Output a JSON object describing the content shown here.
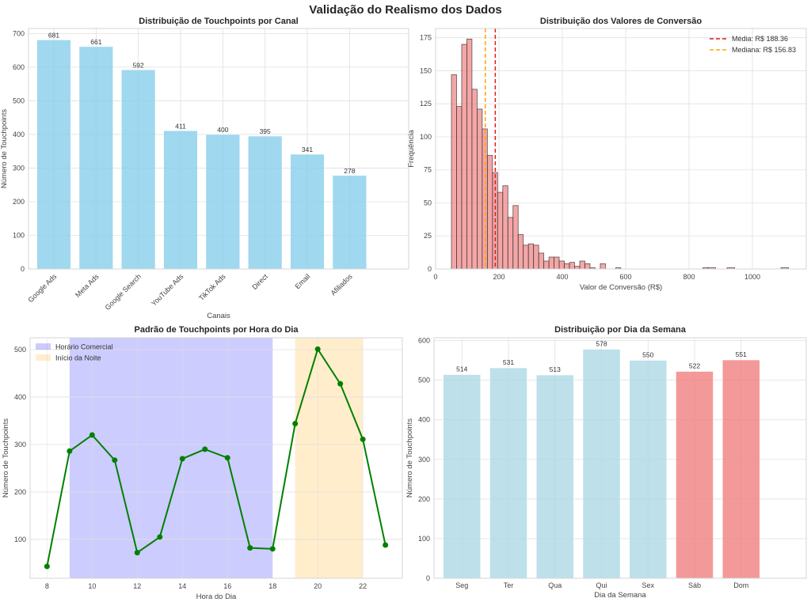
{
  "suptitle": "Validação do Realismo dos Dados",
  "chart_data": [
    {
      "id": "channels",
      "type": "bar",
      "title": "Distribuição de Touchpoints por Canal",
      "xlabel": "Canais",
      "ylabel": "Número de Touchpoints",
      "categories": [
        "Google Ads",
        "Meta Ads",
        "Google Search",
        "YouTube Ads",
        "TikTok Ads",
        "Direct",
        "Email",
        "Afiliados"
      ],
      "values": [
        681,
        661,
        592,
        411,
        400,
        395,
        341,
        278
      ],
      "ylim": [
        0,
        715
      ],
      "yticks": [
        0,
        100,
        200,
        300,
        400,
        500,
        600,
        700
      ],
      "color": "#87ceeb",
      "grid": true
    },
    {
      "id": "conversion",
      "type": "histogram",
      "title": "Distribuição dos Valores de Conversão",
      "xlabel": "Valor de Conversão (R$)",
      "ylabel": "Frequência",
      "bin_start": 50,
      "bin_width": 21.3,
      "counts": [
        147,
        123,
        170,
        174,
        136,
        121,
        106,
        86,
        73,
        58,
        63,
        39,
        48,
        26,
        18,
        19,
        18,
        12,
        6,
        9,
        9,
        6,
        4,
        5,
        2,
        6,
        4,
        1,
        0,
        4,
        0,
        0,
        1,
        0,
        0,
        0,
        0,
        0,
        0,
        0,
        0,
        0,
        0,
        0,
        0,
        0,
        0,
        0,
        0,
        1,
        0
      ],
      "tail_counts": [
        {
          "x": 860,
          "count": 1
        },
        {
          "x": 920,
          "count": 1
        },
        {
          "x": 1090,
          "count": 1
        }
      ],
      "xlim": [
        0,
        1170
      ],
      "ylim": [
        0,
        182
      ],
      "xticks": [
        0,
        200,
        400,
        600,
        800,
        1000
      ],
      "yticks": [
        0,
        25,
        50,
        75,
        100,
        125,
        150,
        175
      ],
      "color": "#f08080",
      "mean": 188.36,
      "median": 156.83,
      "legend": [
        {
          "label": "Média: R$ 188.36",
          "color": "#e41a1c"
        },
        {
          "label": "Mediana: R$ 156.83",
          "color": "#ffa500"
        }
      ],
      "legend_position": "top-right",
      "grid": true
    },
    {
      "id": "hours",
      "type": "line",
      "title": "Padrão de Touchpoints por Hora do Dia",
      "xlabel": "Hora do Dia",
      "ylabel": "Número de Touchpoints",
      "x": [
        8,
        9,
        10,
        11,
        12,
        13,
        14,
        15,
        16,
        17,
        18,
        19,
        20,
        21,
        22,
        23
      ],
      "y": [
        43,
        286,
        320,
        267,
        72,
        105,
        270,
        290,
        272,
        82,
        80,
        344,
        501,
        428,
        311,
        88
      ],
      "xlim": [
        7.25,
        23.75
      ],
      "ylim": [
        18,
        525
      ],
      "xticks": [
        8,
        10,
        12,
        14,
        16,
        18,
        20,
        22
      ],
      "yticks": [
        100,
        200,
        300,
        400,
        500
      ],
      "color": "#008000",
      "spans": [
        {
          "label": "Horário Comercial",
          "from": 9,
          "to": 18,
          "color": "#0000ff",
          "alpha": 0.2
        },
        {
          "label": "Início da Noite",
          "from": 19,
          "to": 22,
          "color": "#ffa500",
          "alpha": 0.2
        }
      ],
      "legend_position": "top-left",
      "grid": true
    },
    {
      "id": "weekday",
      "type": "bar",
      "title": "Distribuição por Dia da Semana",
      "xlabel": "Dia da Semana",
      "ylabel": "Número de Touchpoints",
      "categories": [
        "Seg",
        "Ter",
        "Qua",
        "Qui",
        "Sex",
        "Sáb",
        "Dom"
      ],
      "values": [
        514,
        531,
        513,
        578,
        550,
        522,
        551
      ],
      "colors": [
        "#add8e6",
        "#add8e6",
        "#add8e6",
        "#add8e6",
        "#add8e6",
        "#f08080",
        "#f08080"
      ],
      "ylim": [
        0,
        607
      ],
      "yticks": [
        0,
        100,
        200,
        300,
        400,
        500,
        600
      ],
      "grid": true
    }
  ]
}
